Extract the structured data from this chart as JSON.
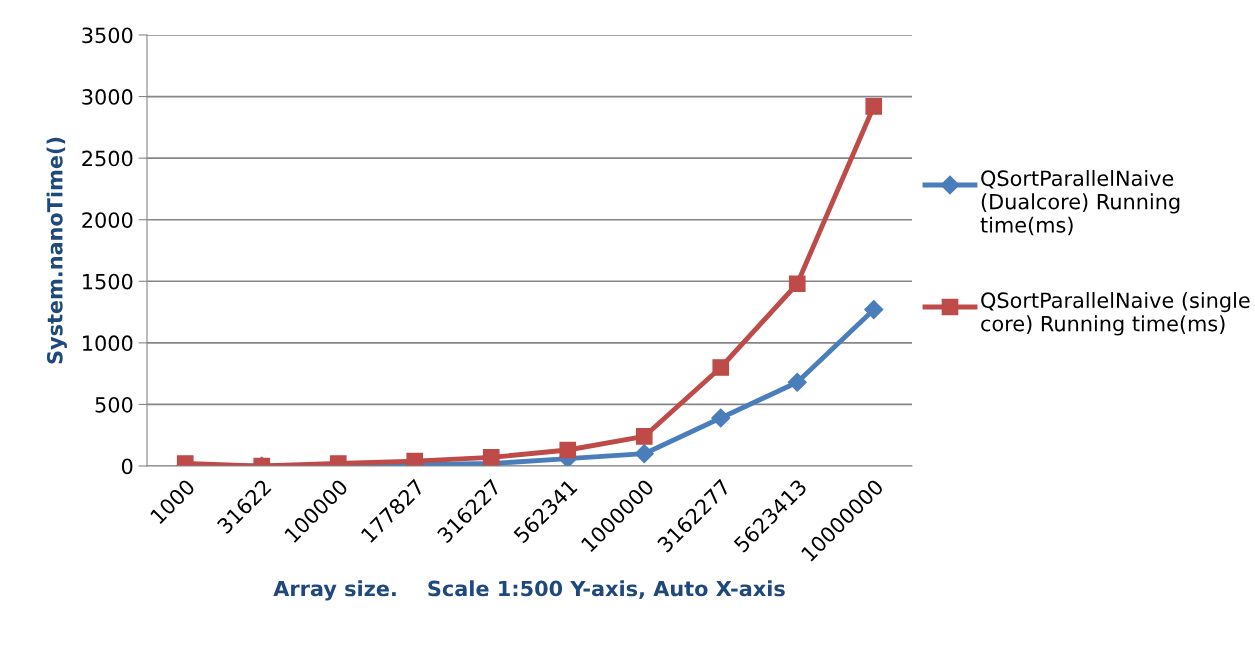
{
  "chart_data": {
    "type": "line",
    "xlabel": "Array size.    Scale 1:500 Y-axis, Auto X-axis",
    "ylabel": "System.nanoTime()",
    "categories": [
      "1000",
      "31622",
      "100000",
      "177827",
      "316227",
      "562341",
      "1000000",
      "3162277",
      "5623413",
      "10000000"
    ],
    "series": [
      {
        "name": "QSortParallelNaive (Dualcore) Running time(ms)",
        "color": "#4a7ebb",
        "marker": "diamond",
        "values": [
          0,
          0,
          0,
          10,
          20,
          60,
          100,
          390,
          680,
          1270
        ]
      },
      {
        "name": "QSortParallelNaive (single core) Running time(ms)",
        "color": "#be4b48",
        "marker": "square",
        "values": [
          20,
          0,
          20,
          40,
          70,
          130,
          240,
          800,
          1480,
          2920
        ]
      }
    ],
    "ylim": [
      0,
      3500
    ],
    "yticks": [
      0,
      500,
      1000,
      1500,
      2000,
      2500,
      3000,
      3500
    ],
    "grid": "y",
    "legend": "right",
    "line_style": "solid"
  }
}
